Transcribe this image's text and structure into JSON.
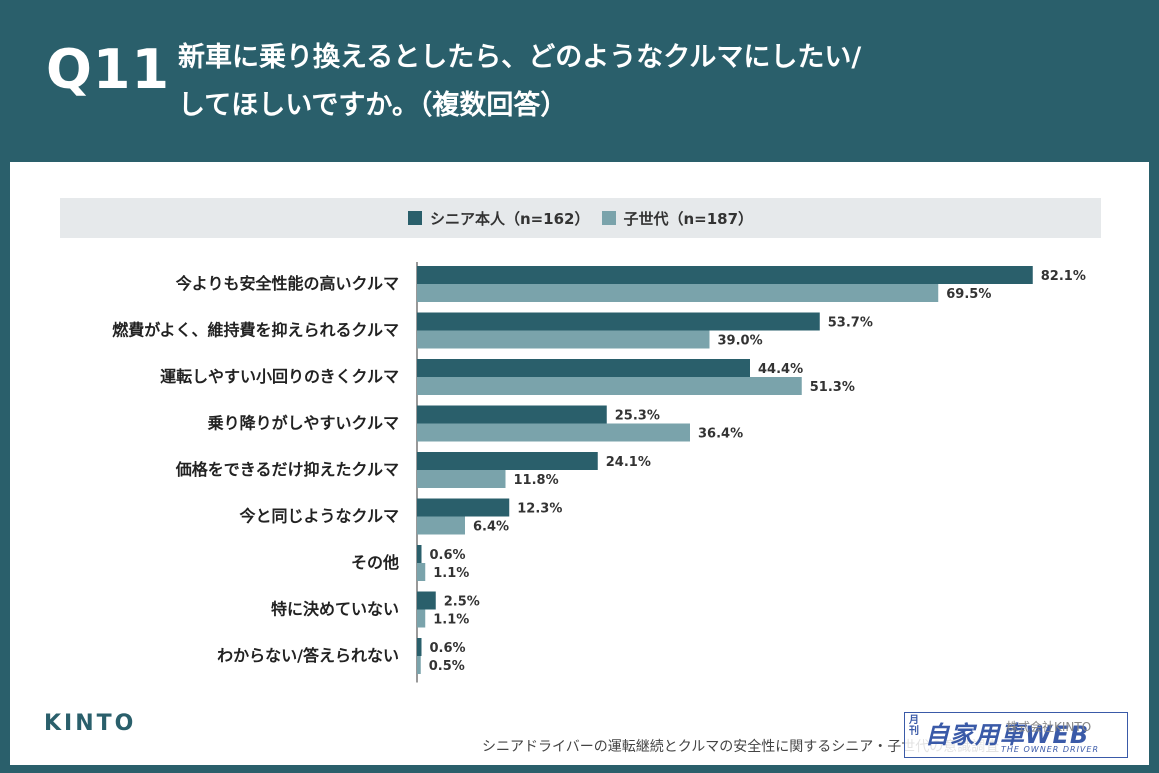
{
  "header": {
    "question_number": "Q11",
    "title_line1": "新車に乗り換えるとしたら、どのようなクルマにしたい/",
    "title_line2": "してほしいですか。（複数回答）"
  },
  "footer": {
    "brand": "KINTO",
    "source": "シニアドライバーの運転継続とクルマの安全性に関するシニア・子世代の意識調査",
    "copyright": "株式会社KINTO"
  },
  "watermark": {
    "small": "月刊",
    "main": "自家用車WEB",
    "english": "THE OWNER DRIVER"
  },
  "colors": {
    "background": "#2a5f6b",
    "series_senior": "#2a5f6b",
    "series_child": "#7aa3ab"
  },
  "chart_data": {
    "type": "bar",
    "orientation": "horizontal",
    "xlim": [
      0,
      100
    ],
    "legend_position": "top",
    "grid": false,
    "categories": [
      "今よりも安全性能の高いクルマ",
      "燃費がよく、維持費を抑えられるクルマ",
      "運転しやすい小回りのきくクルマ",
      "乗り降りがしやすいクルマ",
      "価格をできるだけ抑えたクルマ",
      "今と同じようなクルマ",
      "その他",
      "特に決めていない",
      "わからない/答えられない"
    ],
    "series": [
      {
        "name": "シニア本人（n=162）",
        "color": "#2a5f6b",
        "values": [
          82.1,
          53.7,
          44.4,
          25.3,
          24.1,
          12.3,
          0.6,
          2.5,
          0.6
        ],
        "labels": [
          "82.1%",
          "53.7%",
          "44.4%",
          "25.3%",
          "24.1%",
          "12.3%",
          "0.6%",
          "2.5%",
          "0.6%"
        ]
      },
      {
        "name": "子世代（n=187）",
        "color": "#7aa3ab",
        "values": [
          69.5,
          39.0,
          51.3,
          36.4,
          11.8,
          6.4,
          1.1,
          1.1,
          0.5
        ],
        "labels": [
          "69.5%",
          "39.0%",
          "51.3%",
          "36.4%",
          "11.8%",
          "6.4%",
          "1.1%",
          "1.1%",
          "0.5%"
        ]
      }
    ]
  }
}
